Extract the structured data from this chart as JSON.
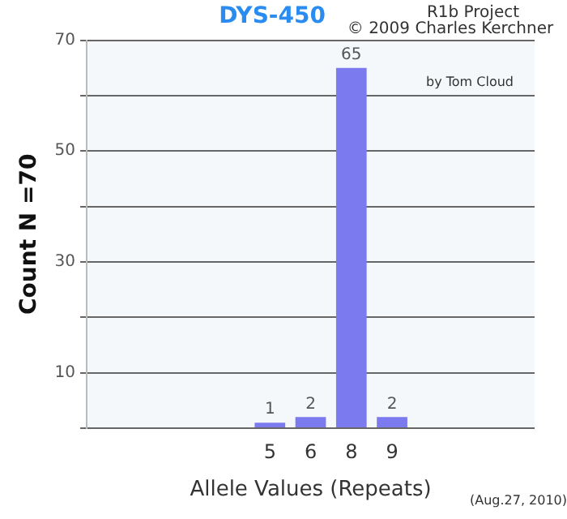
{
  "chart_data": {
    "type": "bar",
    "title": "DYS-450",
    "xlabel": "Allele Values (Repeats)",
    "ylabel": "Count N =70",
    "categories": [
      null,
      null,
      null,
      null,
      "5",
      "6",
      "8",
      "9",
      null,
      null,
      null
    ],
    "values": [
      null,
      null,
      null,
      null,
      1,
      2,
      65,
      2,
      null,
      null,
      null
    ],
    "color": "#7b7bef",
    "ylim": [
      0,
      70
    ],
    "yticks": [
      {
        "value": 0,
        "label": null
      },
      10,
      {
        "value": 20,
        "label": null
      },
      30,
      {
        "value": 40,
        "label": null
      },
      50,
      {
        "value": 60,
        "label": null
      },
      70
    ],
    "grid": "y",
    "data_labels": true,
    "annotations": [
      "R1b Project",
      "© 2009 Charles Kerchner",
      "by Tom Cloud",
      "(Aug.27, 2010)"
    ]
  }
}
